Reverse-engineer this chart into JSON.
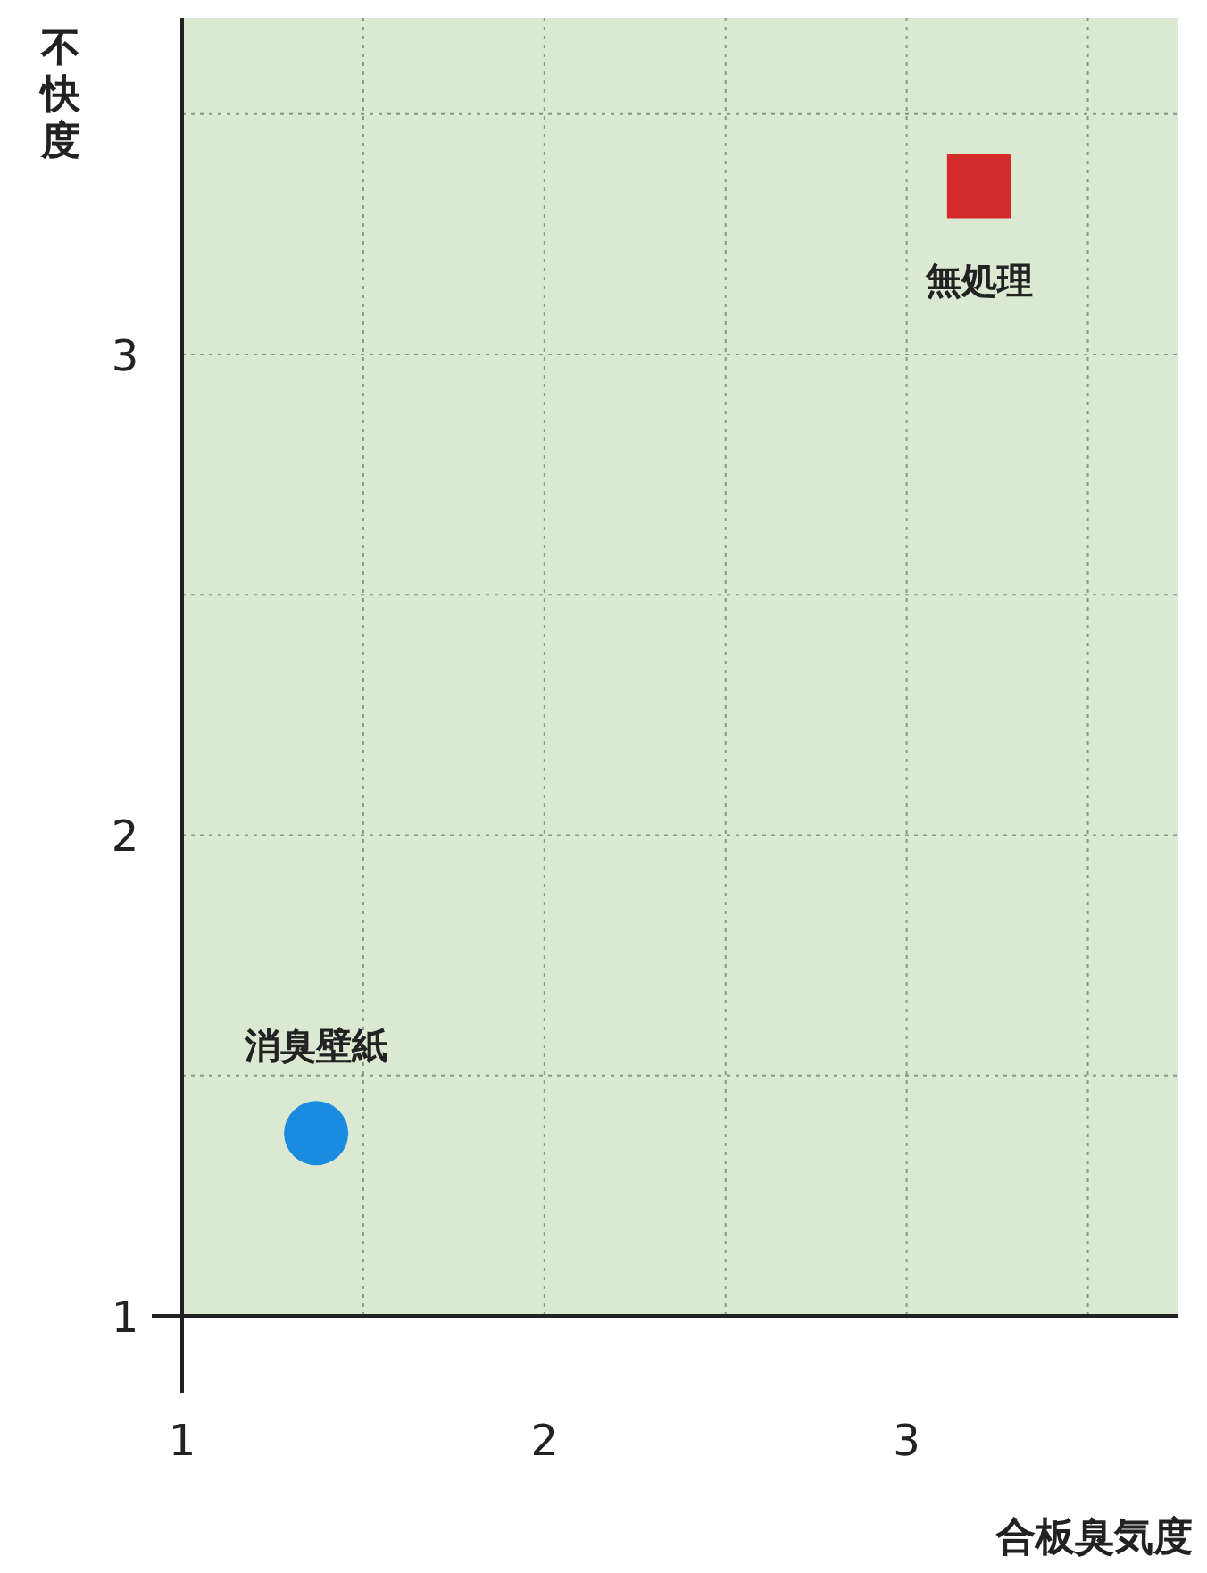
{
  "chart_data": {
    "type": "scatter",
    "xlabel": "合板臭気度",
    "ylabel": "不快度",
    "xlim": [
      1,
      3.75
    ],
    "ylim": [
      1,
      3.7
    ],
    "xticks": [
      1,
      {
        "value": 1.5,
        "label": null
      },
      2,
      {
        "value": 2.5,
        "label": null
      },
      3,
      {
        "value": 3.5,
        "label": null
      }
    ],
    "yticks": [
      1,
      {
        "value": 1.5,
        "label": null
      },
      2,
      {
        "value": 2.5,
        "label": null
      },
      3,
      {
        "value": 3.5,
        "label": null
      }
    ],
    "grid": true,
    "line_style": "dotted",
    "series": [
      {
        "name": "消臭壁紙",
        "color": "#1a8ce0",
        "marker": "circle",
        "x": [
          1.37
        ],
        "values": [
          1.38
        ]
      },
      {
        "name": "無処理",
        "color": "#d42a2a",
        "marker": "square",
        "x": [
          3.2
        ],
        "values": [
          3.35
        ]
      }
    ]
  }
}
